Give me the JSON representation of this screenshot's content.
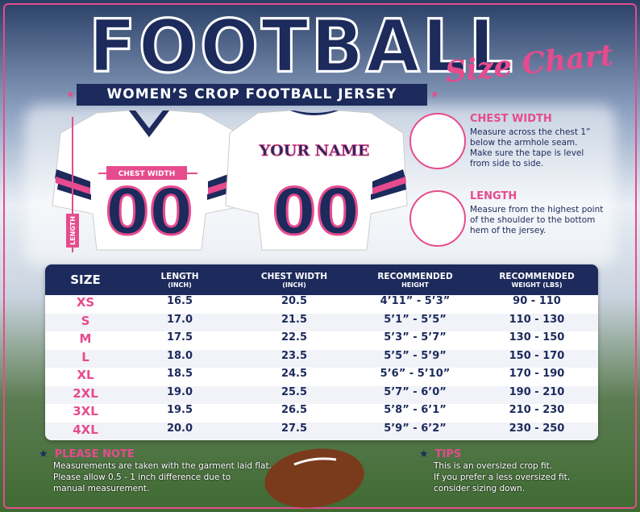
{
  "header": {
    "title": "FOOTBALL",
    "script": "Size Chart",
    "subtitle": "WOMEN’S CROP FOOTBALL JERSEY"
  },
  "jersey": {
    "chest_label": "CHEST WIDTH",
    "length_label": "LENGTH",
    "name": "YOUR NAME",
    "front_number": "00",
    "back_number": "00"
  },
  "guides": [
    {
      "title": "CHEST WIDTH",
      "lines": [
        "Measure across the chest 1”",
        "below the armhole seam.",
        "Make sure the tape is level",
        "from side to side."
      ]
    },
    {
      "title": "LENGTH",
      "lines": [
        "Measure from the highest point",
        "of the shoulder to the bottom",
        "hem of the jersey."
      ]
    }
  ],
  "table": {
    "columns": [
      {
        "label": "SIZE"
      },
      {
        "label": "LENGTH",
        "unit": "(INCH)"
      },
      {
        "label": "CHEST WIDTH",
        "unit": "(INCH)"
      },
      {
        "label": "RECOMMENDED",
        "unit": "HEIGHT"
      },
      {
        "label": "RECOMMENDED",
        "unit": "WEIGHT (LBS)"
      }
    ],
    "rows": [
      [
        "XS",
        "16.5",
        "20.5",
        "4’11” - 5’3”",
        "90 - 110"
      ],
      [
        "S",
        "17.0",
        "21.5",
        "5’1” - 5’5”",
        "110 - 130"
      ],
      [
        "M",
        "17.5",
        "22.5",
        "5’3” - 5’7”",
        "130 - 150"
      ],
      [
        "L",
        "18.0",
        "23.5",
        "5’5” - 5’9”",
        "150 - 170"
      ],
      [
        "XL",
        "18.5",
        "24.5",
        "5’6” - 5’10”",
        "170 - 190"
      ],
      [
        "2XL",
        "19.0",
        "25.5",
        "5’7” - 6’0”",
        "190 - 210"
      ],
      [
        "3XL",
        "19.5",
        "26.5",
        "5’8” - 6’1”",
        "210 - 230"
      ],
      [
        "4XL",
        "20.0",
        "27.5",
        "5’9” - 6’2”",
        "230 - 250"
      ]
    ]
  },
  "notes": [
    {
      "title": "PLEASE NOTE",
      "lines": [
        "Measurements are taken with the garment laid flat.",
        "Please allow 0.5 - 1 inch difference due to",
        "manual measurement."
      ]
    },
    {
      "title": "TIPS",
      "lines": [
        "This is an oversized crop fit.",
        "If you prefer a less oversized fit,",
        "consider sizing down."
      ]
    }
  ]
}
